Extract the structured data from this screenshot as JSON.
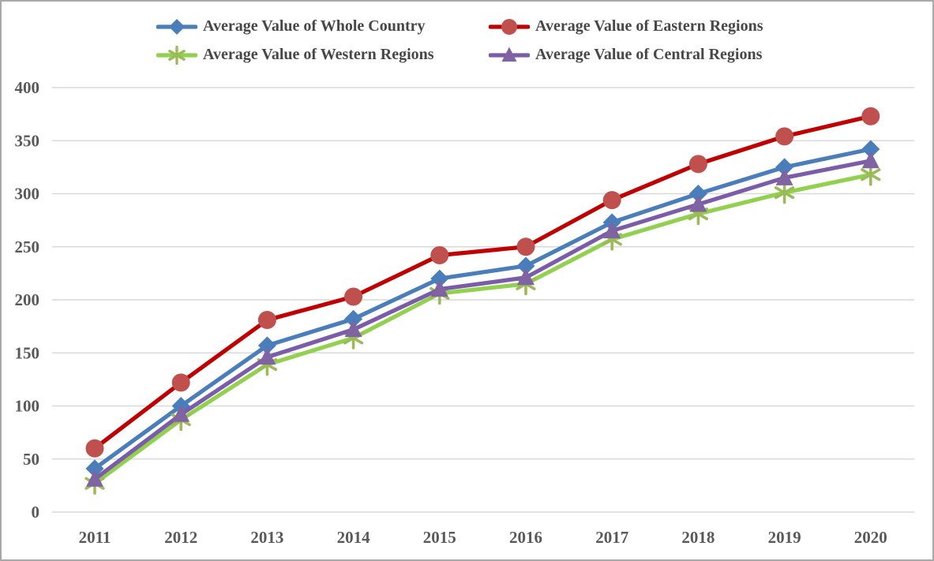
{
  "chart_data": {
    "type": "line",
    "title": "",
    "xlabel": "",
    "ylabel": "",
    "x": [
      2011,
      2012,
      2013,
      2014,
      2015,
      2016,
      2017,
      2018,
      2019,
      2020
    ],
    "series": [
      {
        "name": "Average Value of Whole Country",
        "marker": "diamond",
        "line_color": "#4a7ebb",
        "marker_color": "#4a7ebb",
        "values": [
          41,
          100,
          157,
          182,
          220,
          232,
          273,
          300,
          325,
          342
        ]
      },
      {
        "name": "Average Value of Eastern Regions",
        "marker": "circle",
        "line_color": "#c00000",
        "marker_color": "#c0504d",
        "values": [
          60,
          122,
          181,
          203,
          242,
          250,
          294,
          328,
          354,
          373
        ]
      },
      {
        "name": "Average Value of Western Regions",
        "marker": "asterisk",
        "line_color": "#92d050",
        "marker_color": "#9bbb59",
        "values": [
          27,
          87,
          139,
          164,
          206,
          215,
          257,
          281,
          301,
          318
        ]
      },
      {
        "name": "Average Value of Central Regions",
        "marker": "triangle",
        "line_color": "#7a5ca8",
        "marker_color": "#8064a2",
        "values": [
          31,
          92,
          146,
          172,
          210,
          221,
          265,
          290,
          315,
          331
        ]
      }
    ],
    "ylim": [
      0,
      400
    ],
    "y_ticks": [
      0,
      50,
      100,
      150,
      200,
      250,
      300,
      350,
      400
    ],
    "x_tick_labels": [
      "2011",
      "2012",
      "2013",
      "2014",
      "2015",
      "2016",
      "2017",
      "2018",
      "2019",
      "2020"
    ],
    "grid": "horizontal",
    "legend_position": "top",
    "colors": {
      "grid_line": "#d9d9d9",
      "axis_label": "#595959",
      "legend_text": "#474747",
      "border": "#a9a9a9",
      "background": "#ffffff"
    }
  }
}
